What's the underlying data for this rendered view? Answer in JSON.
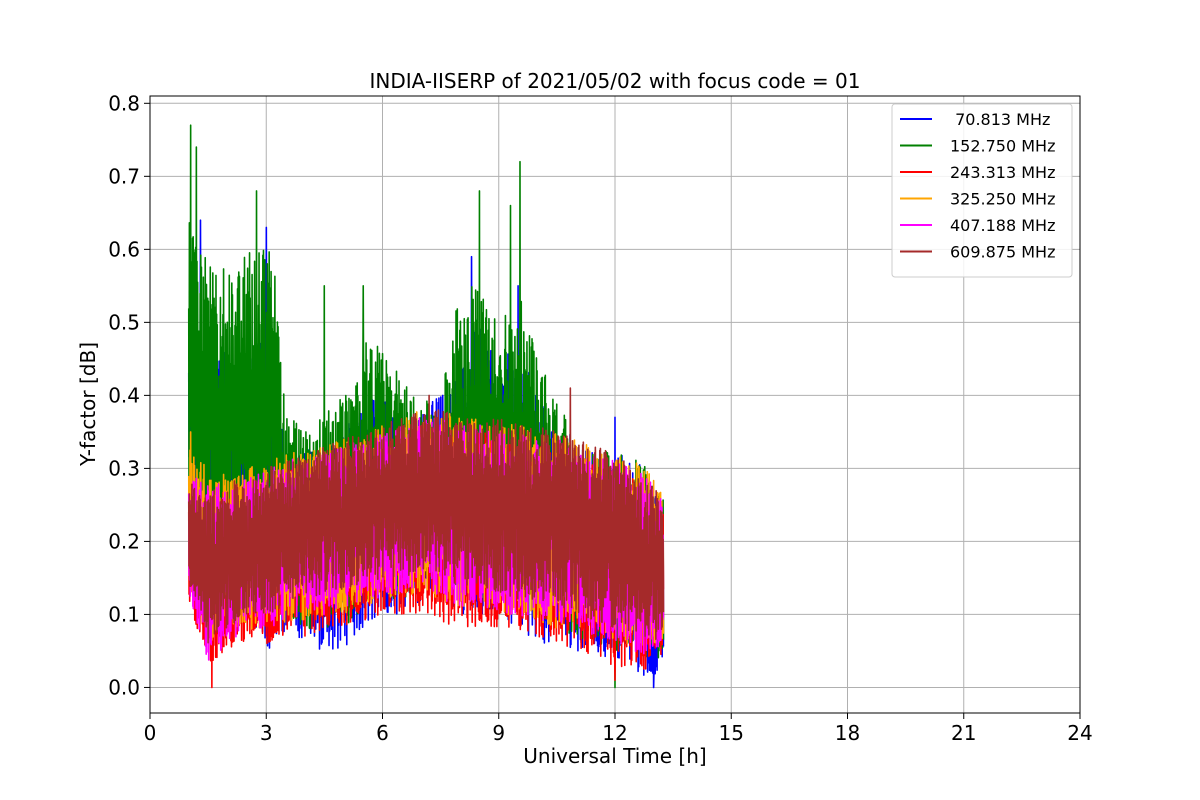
{
  "chart_data": {
    "type": "line",
    "title": "INDIA-IISERP of 2021/05/02 with focus code = 01",
    "xlabel": "Universal Time [h]",
    "ylabel": "Y-factor [dB]",
    "xlim": [
      0,
      24
    ],
    "ylim": [
      -0.035,
      0.81
    ],
    "xticks": [
      0,
      3,
      6,
      9,
      12,
      15,
      18,
      21,
      24
    ],
    "xtick_labels": [
      "0",
      "3",
      "6",
      "9",
      "12",
      "15",
      "18",
      "21",
      "24"
    ],
    "yticks": [
      0.0,
      0.1,
      0.2,
      0.3,
      0.4,
      0.5,
      0.6,
      0.7,
      0.8
    ],
    "ytick_labels": [
      "0.0",
      "0.1",
      "0.2",
      "0.3",
      "0.4",
      "0.5",
      "0.6",
      "0.7",
      "0.8"
    ],
    "grid": true,
    "legend_position": "top-right",
    "time_range": [
      1.0,
      13.25
    ],
    "series": [
      {
        "name": " 70.813 MHz",
        "color": "#0000ff",
        "envelope": [
          {
            "x": 1.0,
            "low": 0.15,
            "high": 0.55
          },
          {
            "x": 1.5,
            "low": 0.12,
            "high": 0.45
          },
          {
            "x": 2.0,
            "low": 0.12,
            "high": 0.47
          },
          {
            "x": 2.5,
            "low": 0.1,
            "high": 0.46
          },
          {
            "x": 3.0,
            "low": 0.05,
            "high": 0.48
          },
          {
            "x": 3.25,
            "low": 0.05,
            "high": 0.44
          },
          {
            "x": 3.5,
            "low": 0.08,
            "high": 0.3
          },
          {
            "x": 4.0,
            "low": 0.06,
            "high": 0.33
          },
          {
            "x": 4.5,
            "low": 0.05,
            "high": 0.32
          },
          {
            "x": 5.0,
            "low": 0.05,
            "high": 0.35
          },
          {
            "x": 5.5,
            "low": 0.08,
            "high": 0.4
          },
          {
            "x": 6.0,
            "low": 0.1,
            "high": 0.4
          },
          {
            "x": 6.5,
            "low": 0.1,
            "high": 0.36
          },
          {
            "x": 7.0,
            "low": 0.12,
            "high": 0.38
          },
          {
            "x": 7.5,
            "low": 0.12,
            "high": 0.4
          },
          {
            "x": 8.0,
            "low": 0.1,
            "high": 0.45
          },
          {
            "x": 8.5,
            "low": 0.1,
            "high": 0.5
          },
          {
            "x": 9.0,
            "low": 0.1,
            "high": 0.45
          },
          {
            "x": 9.5,
            "low": 0.08,
            "high": 0.47
          },
          {
            "x": 10.0,
            "low": 0.06,
            "high": 0.4
          },
          {
            "x": 10.5,
            "low": 0.06,
            "high": 0.36
          },
          {
            "x": 11.0,
            "low": 0.05,
            "high": 0.34
          },
          {
            "x": 11.5,
            "low": 0.05,
            "high": 0.32
          },
          {
            "x": 12.0,
            "low": 0.03,
            "high": 0.32
          },
          {
            "x": 12.5,
            "low": 0.02,
            "high": 0.32
          },
          {
            "x": 13.0,
            "low": 0.01,
            "high": 0.28
          },
          {
            "x": 13.25,
            "low": 0.04,
            "high": 0.24
          }
        ],
        "peaks": [
          {
            "x": 1.3,
            "y": 0.64
          },
          {
            "x": 3.0,
            "y": 0.63
          },
          {
            "x": 8.3,
            "y": 0.59
          },
          {
            "x": 9.5,
            "y": 0.55
          },
          {
            "x": 12.0,
            "y": 0.37
          },
          {
            "x": 13.0,
            "y": 0.0
          }
        ]
      },
      {
        "name": "152.750 MHz",
        "color": "#008000",
        "envelope": [
          {
            "x": 1.0,
            "low": 0.17,
            "high": 0.65
          },
          {
            "x": 1.5,
            "low": 0.15,
            "high": 0.58
          },
          {
            "x": 2.0,
            "low": 0.15,
            "high": 0.58
          },
          {
            "x": 2.5,
            "low": 0.15,
            "high": 0.6
          },
          {
            "x": 3.0,
            "low": 0.14,
            "high": 0.62
          },
          {
            "x": 3.25,
            "low": 0.13,
            "high": 0.58
          },
          {
            "x": 3.5,
            "low": 0.1,
            "high": 0.38
          },
          {
            "x": 4.0,
            "low": 0.08,
            "high": 0.35
          },
          {
            "x": 4.5,
            "low": 0.08,
            "high": 0.38
          },
          {
            "x": 5.0,
            "low": 0.08,
            "high": 0.4
          },
          {
            "x": 5.5,
            "low": 0.1,
            "high": 0.48
          },
          {
            "x": 6.0,
            "low": 0.12,
            "high": 0.47
          },
          {
            "x": 6.5,
            "low": 0.12,
            "high": 0.42
          },
          {
            "x": 7.0,
            "low": 0.14,
            "high": 0.4
          },
          {
            "x": 7.5,
            "low": 0.14,
            "high": 0.4
          },
          {
            "x": 8.0,
            "low": 0.12,
            "high": 0.55
          },
          {
            "x": 8.5,
            "low": 0.12,
            "high": 0.55
          },
          {
            "x": 9.0,
            "low": 0.12,
            "high": 0.5
          },
          {
            "x": 9.5,
            "low": 0.1,
            "high": 0.55
          },
          {
            "x": 10.0,
            "low": 0.1,
            "high": 0.45
          },
          {
            "x": 10.5,
            "low": 0.08,
            "high": 0.4
          },
          {
            "x": 11.0,
            "low": 0.07,
            "high": 0.35
          },
          {
            "x": 11.5,
            "low": 0.06,
            "high": 0.32
          },
          {
            "x": 12.0,
            "low": 0.05,
            "high": 0.33
          },
          {
            "x": 12.5,
            "low": 0.05,
            "high": 0.32
          },
          {
            "x": 13.0,
            "low": 0.03,
            "high": 0.3
          },
          {
            "x": 13.25,
            "low": 0.05,
            "high": 0.26
          }
        ],
        "peaks": [
          {
            "x": 1.05,
            "y": 0.77
          },
          {
            "x": 1.2,
            "y": 0.74
          },
          {
            "x": 2.75,
            "y": 0.68
          },
          {
            "x": 4.5,
            "y": 0.55
          },
          {
            "x": 5.5,
            "y": 0.55
          },
          {
            "x": 8.5,
            "y": 0.68
          },
          {
            "x": 9.55,
            "y": 0.72
          },
          {
            "x": 9.3,
            "y": 0.66
          },
          {
            "x": 12.0,
            "y": 0.0
          }
        ]
      },
      {
        "name": "243.313 MHz",
        "color": "#ff0000",
        "envelope": [
          {
            "x": 1.0,
            "low": 0.12,
            "high": 0.28
          },
          {
            "x": 1.5,
            "low": 0.03,
            "high": 0.27
          },
          {
            "x": 2.0,
            "low": 0.05,
            "high": 0.27
          },
          {
            "x": 2.5,
            "low": 0.06,
            "high": 0.28
          },
          {
            "x": 3.0,
            "low": 0.06,
            "high": 0.29
          },
          {
            "x": 3.5,
            "low": 0.07,
            "high": 0.3
          },
          {
            "x": 4.0,
            "low": 0.07,
            "high": 0.3
          },
          {
            "x": 4.5,
            "low": 0.08,
            "high": 0.31
          },
          {
            "x": 5.0,
            "low": 0.08,
            "high": 0.32
          },
          {
            "x": 5.5,
            "low": 0.09,
            "high": 0.33
          },
          {
            "x": 6.0,
            "low": 0.1,
            "high": 0.34
          },
          {
            "x": 6.5,
            "low": 0.1,
            "high": 0.35
          },
          {
            "x": 7.0,
            "low": 0.1,
            "high": 0.36
          },
          {
            "x": 7.5,
            "low": 0.09,
            "high": 0.36
          },
          {
            "x": 8.0,
            "low": 0.08,
            "high": 0.35
          },
          {
            "x": 8.5,
            "low": 0.08,
            "high": 0.35
          },
          {
            "x": 9.0,
            "low": 0.08,
            "high": 0.35
          },
          {
            "x": 9.5,
            "low": 0.08,
            "high": 0.34
          },
          {
            "x": 10.0,
            "low": 0.07,
            "high": 0.33
          },
          {
            "x": 10.5,
            "low": 0.06,
            "high": 0.33
          },
          {
            "x": 11.0,
            "low": 0.05,
            "high": 0.32
          },
          {
            "x": 11.5,
            "low": 0.04,
            "high": 0.31
          },
          {
            "x": 12.0,
            "low": 0.02,
            "high": 0.3
          },
          {
            "x": 12.5,
            "low": 0.03,
            "high": 0.29
          },
          {
            "x": 13.0,
            "low": 0.02,
            "high": 0.27
          },
          {
            "x": 13.25,
            "low": 0.05,
            "high": 0.25
          }
        ],
        "peaks": [
          {
            "x": 1.6,
            "y": 0.0
          },
          {
            "x": 12.0,
            "y": 0.01
          }
        ]
      },
      {
        "name": "325.250 MHz",
        "color": "#ffa500",
        "envelope": [
          {
            "x": 1.0,
            "low": 0.15,
            "high": 0.33
          },
          {
            "x": 1.5,
            "low": 0.06,
            "high": 0.3
          },
          {
            "x": 2.0,
            "low": 0.07,
            "high": 0.29
          },
          {
            "x": 2.5,
            "low": 0.08,
            "high": 0.3
          },
          {
            "x": 3.0,
            "low": 0.08,
            "high": 0.31
          },
          {
            "x": 3.5,
            "low": 0.09,
            "high": 0.32
          },
          {
            "x": 4.0,
            "low": 0.09,
            "high": 0.33
          },
          {
            "x": 4.5,
            "low": 0.1,
            "high": 0.33
          },
          {
            "x": 5.0,
            "low": 0.1,
            "high": 0.34
          },
          {
            "x": 5.5,
            "low": 0.11,
            "high": 0.35
          },
          {
            "x": 6.0,
            "low": 0.12,
            "high": 0.36
          },
          {
            "x": 6.5,
            "low": 0.12,
            "high": 0.37
          },
          {
            "x": 7.0,
            "low": 0.13,
            "high": 0.38
          },
          {
            "x": 7.5,
            "low": 0.12,
            "high": 0.38
          },
          {
            "x": 8.0,
            "low": 0.11,
            "high": 0.37
          },
          {
            "x": 8.5,
            "low": 0.11,
            "high": 0.37
          },
          {
            "x": 9.0,
            "low": 0.1,
            "high": 0.36
          },
          {
            "x": 9.5,
            "low": 0.1,
            "high": 0.36
          },
          {
            "x": 10.0,
            "low": 0.09,
            "high": 0.35
          },
          {
            "x": 10.5,
            "low": 0.08,
            "high": 0.35
          },
          {
            "x": 11.0,
            "low": 0.08,
            "high": 0.34
          },
          {
            "x": 11.5,
            "low": 0.07,
            "high": 0.33
          },
          {
            "x": 12.0,
            "low": 0.06,
            "high": 0.32
          },
          {
            "x": 12.5,
            "low": 0.06,
            "high": 0.31
          },
          {
            "x": 13.0,
            "low": 0.05,
            "high": 0.29
          },
          {
            "x": 13.25,
            "low": 0.07,
            "high": 0.26
          }
        ],
        "peaks": [
          {
            "x": 1.05,
            "y": 0.35
          }
        ]
      },
      {
        "name": "407.188 MHz",
        "color": "#ff00ff",
        "envelope": [
          {
            "x": 1.0,
            "low": 0.13,
            "high": 0.3
          },
          {
            "x": 1.5,
            "low": 0.03,
            "high": 0.28
          },
          {
            "x": 2.0,
            "low": 0.06,
            "high": 0.28
          },
          {
            "x": 2.5,
            "low": 0.08,
            "high": 0.29
          },
          {
            "x": 3.0,
            "low": 0.08,
            "high": 0.3
          },
          {
            "x": 3.5,
            "low": 0.09,
            "high": 0.31
          },
          {
            "x": 4.0,
            "low": 0.1,
            "high": 0.32
          },
          {
            "x": 4.5,
            "low": 0.1,
            "high": 0.32
          },
          {
            "x": 5.0,
            "low": 0.11,
            "high": 0.33
          },
          {
            "x": 5.5,
            "low": 0.12,
            "high": 0.34
          },
          {
            "x": 6.0,
            "low": 0.12,
            "high": 0.35
          },
          {
            "x": 6.5,
            "low": 0.13,
            "high": 0.36
          },
          {
            "x": 7.0,
            "low": 0.14,
            "high": 0.37
          },
          {
            "x": 7.5,
            "low": 0.12,
            "high": 0.37
          },
          {
            "x": 8.0,
            "low": 0.11,
            "high": 0.36
          },
          {
            "x": 8.5,
            "low": 0.11,
            "high": 0.36
          },
          {
            "x": 9.0,
            "low": 0.1,
            "high": 0.35
          },
          {
            "x": 9.5,
            "low": 0.1,
            "high": 0.35
          },
          {
            "x": 10.0,
            "low": 0.09,
            "high": 0.34
          },
          {
            "x": 10.5,
            "low": 0.09,
            "high": 0.34
          },
          {
            "x": 11.0,
            "low": 0.08,
            "high": 0.33
          },
          {
            "x": 11.5,
            "low": 0.07,
            "high": 0.32
          },
          {
            "x": 12.0,
            "low": 0.06,
            "high": 0.31
          },
          {
            "x": 12.5,
            "low": 0.05,
            "high": 0.3
          },
          {
            "x": 13.0,
            "low": 0.04,
            "high": 0.28
          },
          {
            "x": 13.25,
            "low": 0.06,
            "high": 0.25
          }
        ],
        "peaks": [
          {
            "x": 7.1,
            "y": 0.24
          }
        ]
      },
      {
        "name": "609.875 MHz",
        "color": "#a52a2a",
        "envelope": [
          {
            "x": 1.0,
            "low": 0.14,
            "high": 0.28
          },
          {
            "x": 1.5,
            "low": 0.06,
            "high": 0.27
          },
          {
            "x": 2.0,
            "low": 0.08,
            "high": 0.28
          },
          {
            "x": 2.5,
            "low": 0.1,
            "high": 0.29
          },
          {
            "x": 3.0,
            "low": 0.1,
            "high": 0.3
          },
          {
            "x": 3.5,
            "low": 0.11,
            "high": 0.31
          },
          {
            "x": 4.0,
            "low": 0.12,
            "high": 0.32
          },
          {
            "x": 4.5,
            "low": 0.13,
            "high": 0.33
          },
          {
            "x": 5.0,
            "low": 0.13,
            "high": 0.34
          },
          {
            "x": 5.5,
            "low": 0.14,
            "high": 0.35
          },
          {
            "x": 6.0,
            "low": 0.15,
            "high": 0.36
          },
          {
            "x": 6.5,
            "low": 0.15,
            "high": 0.37
          },
          {
            "x": 7.0,
            "low": 0.16,
            "high": 0.38
          },
          {
            "x": 7.5,
            "low": 0.15,
            "high": 0.38
          },
          {
            "x": 8.0,
            "low": 0.14,
            "high": 0.37
          },
          {
            "x": 8.5,
            "low": 0.14,
            "high": 0.37
          },
          {
            "x": 9.0,
            "low": 0.13,
            "high": 0.37
          },
          {
            "x": 9.5,
            "low": 0.12,
            "high": 0.36
          },
          {
            "x": 10.0,
            "low": 0.12,
            "high": 0.36
          },
          {
            "x": 10.5,
            "low": 0.11,
            "high": 0.35
          },
          {
            "x": 11.0,
            "low": 0.1,
            "high": 0.34
          },
          {
            "x": 11.5,
            "low": 0.09,
            "high": 0.33
          },
          {
            "x": 12.0,
            "low": 0.08,
            "high": 0.32
          },
          {
            "x": 12.5,
            "low": 0.07,
            "high": 0.31
          },
          {
            "x": 13.0,
            "low": 0.06,
            "high": 0.28
          },
          {
            "x": 13.25,
            "low": 0.08,
            "high": 0.24
          }
        ],
        "peaks": [
          {
            "x": 7.2,
            "y": 0.4
          },
          {
            "x": 10.85,
            "y": 0.41
          }
        ]
      }
    ]
  }
}
